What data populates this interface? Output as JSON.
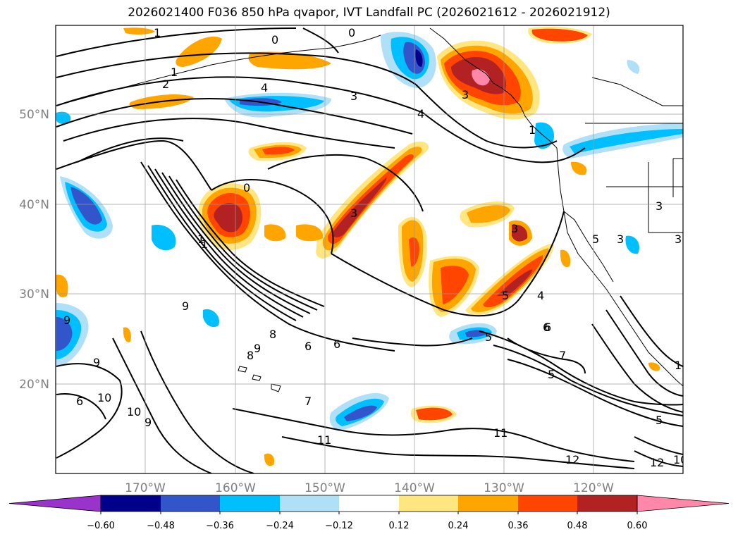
{
  "title": "2026021400 F036 850 hPa qvapor, IVT Landfall PC (2026021612 - 2026021912)",
  "map": {
    "lon_labels": [
      "170°W",
      "160°W",
      "150°W",
      "140°W",
      "130°W",
      "120°W"
    ],
    "lat_labels": [
      "50°N",
      "40°N",
      "30°N",
      "20°N"
    ],
    "contour_labels": [
      "1",
      "1",
      "2",
      "4",
      "3",
      "4",
      "0",
      "1",
      "3",
      "0",
      "3",
      "1",
      "3",
      "5",
      "6",
      "9",
      "6",
      "6",
      "9",
      "8",
      "9",
      "7",
      "11",
      "10",
      "10",
      "9",
      "8",
      "9",
      "6",
      "11",
      "5",
      "6",
      "7",
      "5",
      "12",
      "12",
      "10",
      "1",
      "5",
      "3",
      "3",
      "3",
      "5",
      "4",
      "0",
      "1"
    ]
  },
  "colorbar": {
    "tick_labels": [
      "−0.60",
      "−0.48",
      "−0.36",
      "−0.24",
      "−0.12",
      "0.12",
      "0.24",
      "0.36",
      "0.48",
      "0.60"
    ],
    "colors": [
      "#9933cc",
      "#00008b",
      "#3355cc",
      "#00bfff",
      "#b0e0f8",
      "#ffffff",
      "#ffe680",
      "#ffa500",
      "#ff4500",
      "#b22222",
      "#ff88aa"
    ]
  }
}
